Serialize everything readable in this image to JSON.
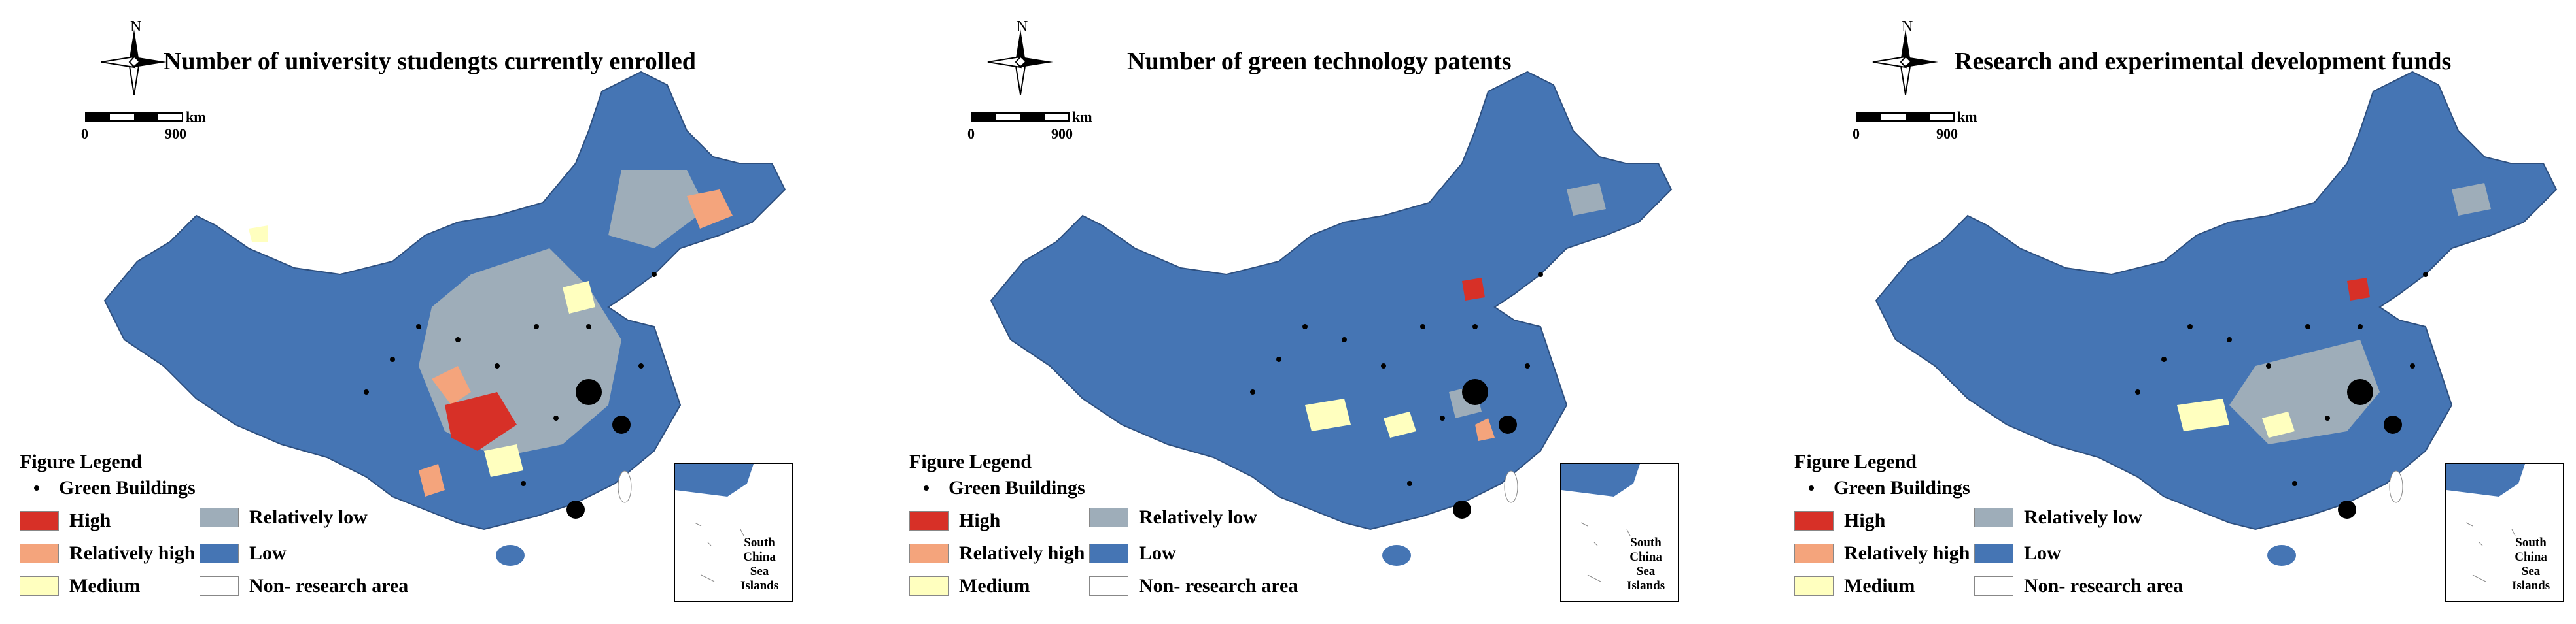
{
  "panels": [
    {
      "title": "Number of university studengts currently enrolled"
    },
    {
      "title": "Number of green technology patents"
    },
    {
      "title": "Research and experimental development funds"
    }
  ],
  "north_label": "N",
  "scale": {
    "unit": "km",
    "start": "0",
    "end": "900"
  },
  "legend": {
    "title": "Figure Legend",
    "points": "Green Buildings",
    "classes": [
      {
        "label": "High",
        "color": "#d73027"
      },
      {
        "label": "Relatively high",
        "color": "#f4a47c"
      },
      {
        "label": "Medium",
        "color": "#ffffbf"
      },
      {
        "label": "Relatively low",
        "color": "#9eadb9"
      },
      {
        "label": "Low",
        "color": "#4575b4"
      },
      {
        "label": "Non- research area",
        "color": "#ffffff"
      }
    ]
  },
  "inset_label": [
    "South",
    "China",
    "Sea",
    "Islands"
  ],
  "colors": {
    "base": "#4575b4"
  }
}
